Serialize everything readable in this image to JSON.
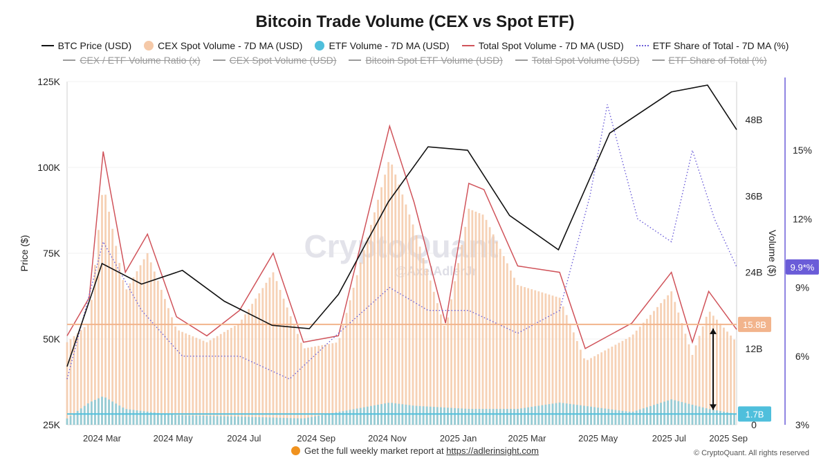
{
  "title": "Bitcoin Trade Volume (CEX vs Spot ETF)",
  "legend_active": [
    {
      "label": "BTC Price (USD)",
      "icon": "line",
      "color": "#111111"
    },
    {
      "label": "CEX Spot Volume - 7D MA (USD)",
      "icon": "dot",
      "color": "#f5c9a8"
    },
    {
      "label": "ETF Volume - 7D MA (USD)",
      "icon": "dot",
      "color": "#4fbfdc"
    },
    {
      "label": "Total Spot Volume - 7D MA (USD)",
      "icon": "line",
      "color": "#d0535a"
    },
    {
      "label": "ETF Share of Total - 7D MA (%)",
      "icon": "dots",
      "color": "#6a5cd8"
    }
  ],
  "legend_hidden": [
    {
      "label": "CEX / ETF Volume Ratio (x)"
    },
    {
      "label": "CEX Spot Volume (USD)"
    },
    {
      "label": "Bitcoin Spot ETF Volume (USD)"
    },
    {
      "label": "Total Spot Volume (USD)"
    },
    {
      "label": "ETF Share of Total (%)"
    }
  ],
  "footer": {
    "text": "Get the full weekly market report at",
    "link": "https://adlerinsight.com",
    "copyright": "© CryptoQuant. All rights reserved"
  },
  "watermark": {
    "brand": "CryptoQuant",
    "handle": "@AxelAdlerJr"
  },
  "colors": {
    "price": "#111111",
    "cex": "#f5c9a8",
    "etf": "#4fbfdc",
    "total": "#d0535a",
    "share": "#6a5cd8",
    "ref_cex": "#f2b48c",
    "ref_etf": "#4fbfdc"
  },
  "chart_data": {
    "type": "line",
    "x_tick_labels": [
      "2024 Mar",
      "2024 May",
      "2024 Jul",
      "2024 Sep",
      "2024 Nov",
      "2025 Jan",
      "2025 Mar",
      "2025 May",
      "2025 Jul",
      "2025 Sep"
    ],
    "x_range": [
      "2024-02-11",
      "2025-09-08"
    ],
    "axes": {
      "price": {
        "label": "Price ($)",
        "ticks": [
          "25K",
          "50K",
          "75K",
          "100K",
          "125K"
        ],
        "range": [
          25000,
          125000
        ]
      },
      "volume": {
        "label": "Volume ($)",
        "ticks": [
          "0",
          "12B",
          "24B",
          "36B",
          "48B"
        ],
        "range": [
          0,
          54
        ]
      },
      "share": {
        "ticks": [
          "3%",
          "6%",
          "9%",
          "12%",
          "15%"
        ],
        "range": [
          3,
          18
        ]
      }
    },
    "reference_lines": [
      {
        "series": "CEX Spot Volume - 7D MA (USD)",
        "value": 15.8,
        "label": "15.8B"
      },
      {
        "series": "ETF Volume - 7D MA (USD)",
        "value": 1.7,
        "label": "1.7B"
      }
    ],
    "current_share_label": "9.9*%",
    "series": [
      {
        "name": "BTC Price (USD)",
        "axis": "price",
        "x": [
          "2024-02-11",
          "2024-03-12",
          "2024-04-15",
          "2024-05-20",
          "2024-06-25",
          "2024-08-05",
          "2024-09-06",
          "2024-10-01",
          "2024-11-13",
          "2024-12-17",
          "2025-01-20",
          "2025-02-25",
          "2025-04-08",
          "2025-05-22",
          "2025-07-14",
          "2025-08-14",
          "2025-09-08"
        ],
        "values": [
          42000,
          72000,
          66000,
          70000,
          61000,
          54000,
          53000,
          63000,
          90000,
          106000,
          105000,
          86000,
          76000,
          110000,
          122000,
          124000,
          111000
        ]
      },
      {
        "name": "Total Spot Volume - 7D MA (USD)",
        "axis": "volume",
        "x": [
          "2024-02-11",
          "2024-03-01",
          "2024-03-13",
          "2024-04-01",
          "2024-04-20",
          "2024-05-15",
          "2024-06-10",
          "2024-07-08",
          "2024-08-06",
          "2024-09-01",
          "2024-10-01",
          "2024-11-14",
          "2024-12-05",
          "2025-01-01",
          "2025-01-21",
          "2025-02-03",
          "2025-03-04",
          "2025-04-09",
          "2025-05-01",
          "2025-06-10",
          "2025-07-14",
          "2025-08-01",
          "2025-08-15",
          "2025-09-08"
        ],
        "values": [
          14,
          20,
          43,
          24,
          30,
          17,
          14,
          18,
          27,
          13,
          14,
          47,
          35,
          16,
          38,
          37,
          25,
          24,
          12,
          16,
          24,
          13,
          21,
          15
        ]
      },
      {
        "name": "CEX Spot Volume - 7D MA (USD)",
        "axis": "volume",
        "x": [
          "2024-02-11",
          "2024-03-01",
          "2024-03-13",
          "2024-04-01",
          "2024-04-20",
          "2024-05-15",
          "2024-06-10",
          "2024-07-08",
          "2024-08-06",
          "2024-09-01",
          "2024-10-01",
          "2024-11-14",
          "2024-12-05",
          "2025-01-01",
          "2025-01-21",
          "2025-02-03",
          "2025-03-04",
          "2025-04-09",
          "2025-05-01",
          "2025-06-10",
          "2025-07-14",
          "2025-08-01",
          "2025-08-15",
          "2025-09-08"
        ],
        "values": [
          13,
          16,
          38,
          21,
          27,
          15,
          13,
          16,
          24,
          12,
          13,
          42,
          31,
          15,
          34,
          33,
          22,
          20,
          10,
          14,
          21,
          11,
          18,
          13
        ]
      },
      {
        "name": "ETF Volume - 7D MA (USD)",
        "axis": "volume",
        "x": [
          "2024-02-11",
          "2024-03-01",
          "2024-03-13",
          "2024-04-01",
          "2024-05-15",
          "2024-07-08",
          "2024-09-01",
          "2024-11-14",
          "2024-12-05",
          "2025-01-21",
          "2025-03-04",
          "2025-04-09",
          "2025-06-10",
          "2025-07-14",
          "2025-08-15",
          "2025-09-08"
        ],
        "values": [
          1.0,
          3.5,
          4.5,
          2.5,
          1.5,
          1.3,
          1.0,
          3.5,
          3.0,
          2.5,
          2.5,
          3.5,
          2.0,
          4.0,
          2.5,
          1.7
        ]
      },
      {
        "name": "ETF Share of Total - 7D MA (%)",
        "axis": "share",
        "x": [
          "2024-02-11",
          "2024-03-13",
          "2024-04-15",
          "2024-05-20",
          "2024-07-08",
          "2024-08-20",
          "2024-10-01",
          "2024-11-14",
          "2024-12-17",
          "2025-01-21",
          "2025-03-04",
          "2025-04-09",
          "2025-05-05",
          "2025-05-20",
          "2025-06-15",
          "2025-07-14",
          "2025-08-01",
          "2025-08-20",
          "2025-09-08"
        ],
        "values": [
          5,
          11,
          8,
          6,
          6,
          5,
          7,
          9,
          8,
          8,
          7,
          8,
          13,
          17,
          12,
          11,
          15,
          12,
          9.9
        ]
      }
    ]
  }
}
